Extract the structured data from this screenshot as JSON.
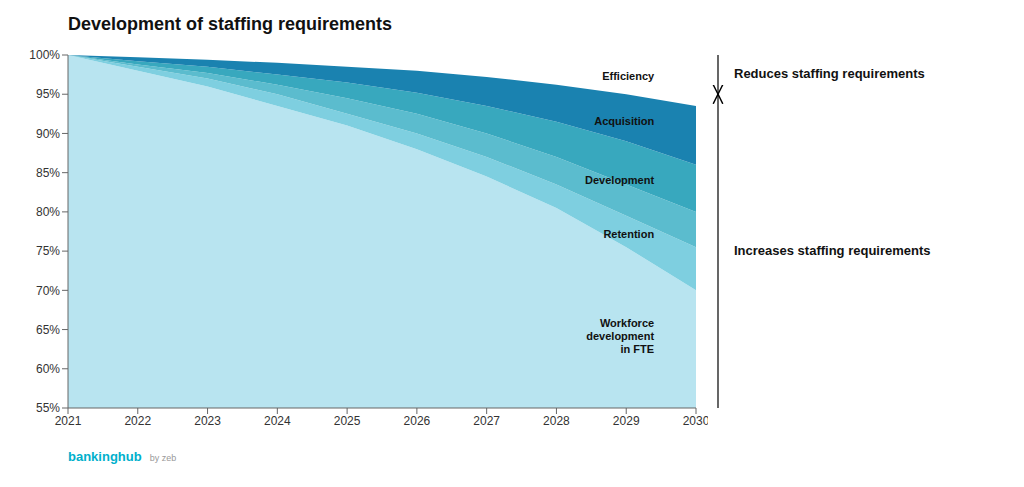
{
  "chart_data": {
    "type": "area",
    "title": "Development of staffing requirements",
    "x": [
      2021,
      2022,
      2023,
      2024,
      2025,
      2026,
      2027,
      2028,
      2029,
      2030
    ],
    "xlim": [
      2021,
      2030
    ],
    "xticks": [
      2021,
      2022,
      2023,
      2024,
      2025,
      2026,
      2027,
      2028,
      2029,
      2030
    ],
    "ylim": [
      55,
      100
    ],
    "yticks": [
      {
        "value": 55,
        "label": "55%"
      },
      {
        "value": 60,
        "label": "60%"
      },
      {
        "value": 65,
        "label": "65%"
      },
      {
        "value": 70,
        "label": "70%"
      },
      {
        "value": 75,
        "label": "75%"
      },
      {
        "value": 80,
        "label": "80%"
      },
      {
        "value": 85,
        "label": "85%"
      },
      {
        "value": 90,
        "label": "90%"
      },
      {
        "value": 95,
        "label": "95%"
      },
      {
        "value": 100,
        "label": "100%"
      }
    ],
    "grid": false,
    "series": [
      {
        "name": "Workforce\ndevelopment\nin FTE",
        "color": "#b8e4f0",
        "values": [
          100,
          98.0,
          96.0,
          93.5,
          91.0,
          88.0,
          84.5,
          80.5,
          75.5,
          70.0
        ]
      },
      {
        "name": "Retention",
        "color": "#7ecfe0",
        "values": [
          100,
          98.5,
          97.0,
          95.0,
          92.5,
          90.0,
          87.0,
          83.5,
          79.5,
          75.5
        ]
      },
      {
        "name": "Development",
        "color": "#5bbcce",
        "values": [
          100,
          98.8,
          97.7,
          96.2,
          94.5,
          92.5,
          90.0,
          87.0,
          83.5,
          80.0
        ]
      },
      {
        "name": "Acquisition",
        "color": "#38a8be",
        "values": [
          100,
          99.2,
          98.5,
          97.5,
          96.5,
          95.2,
          93.5,
          91.5,
          89.0,
          86.0
        ]
      },
      {
        "name": "Efficiency",
        "color": "#1a82b0",
        "values": [
          100,
          99.7,
          99.4,
          99.0,
          98.5,
          98.0,
          97.2,
          96.2,
          95.0,
          93.5
        ]
      }
    ],
    "annotations": [
      {
        "text": "Workforce\ndevelopment\nin FTE",
        "x": 2029.4,
        "y": 64.0
      },
      {
        "text": "Retention",
        "x": 2029.4,
        "y": 77.0
      },
      {
        "text": "Development",
        "x": 2029.4,
        "y": 84.0
      },
      {
        "text": "Acquisition",
        "x": 2029.4,
        "y": 91.5
      },
      {
        "text": "Efficiency",
        "x": 2029.4,
        "y": 97.2
      }
    ],
    "arrows": [
      {
        "text": "Reduces staffing requirements",
        "from": 100,
        "to": 95.0
      },
      {
        "text": "Increases staffing requirements",
        "from": 55,
        "to": 95.0
      }
    ],
    "footer": {
      "text": "bankinghub",
      "subtext": "by zeb",
      "color": "#00b0cc"
    }
  }
}
